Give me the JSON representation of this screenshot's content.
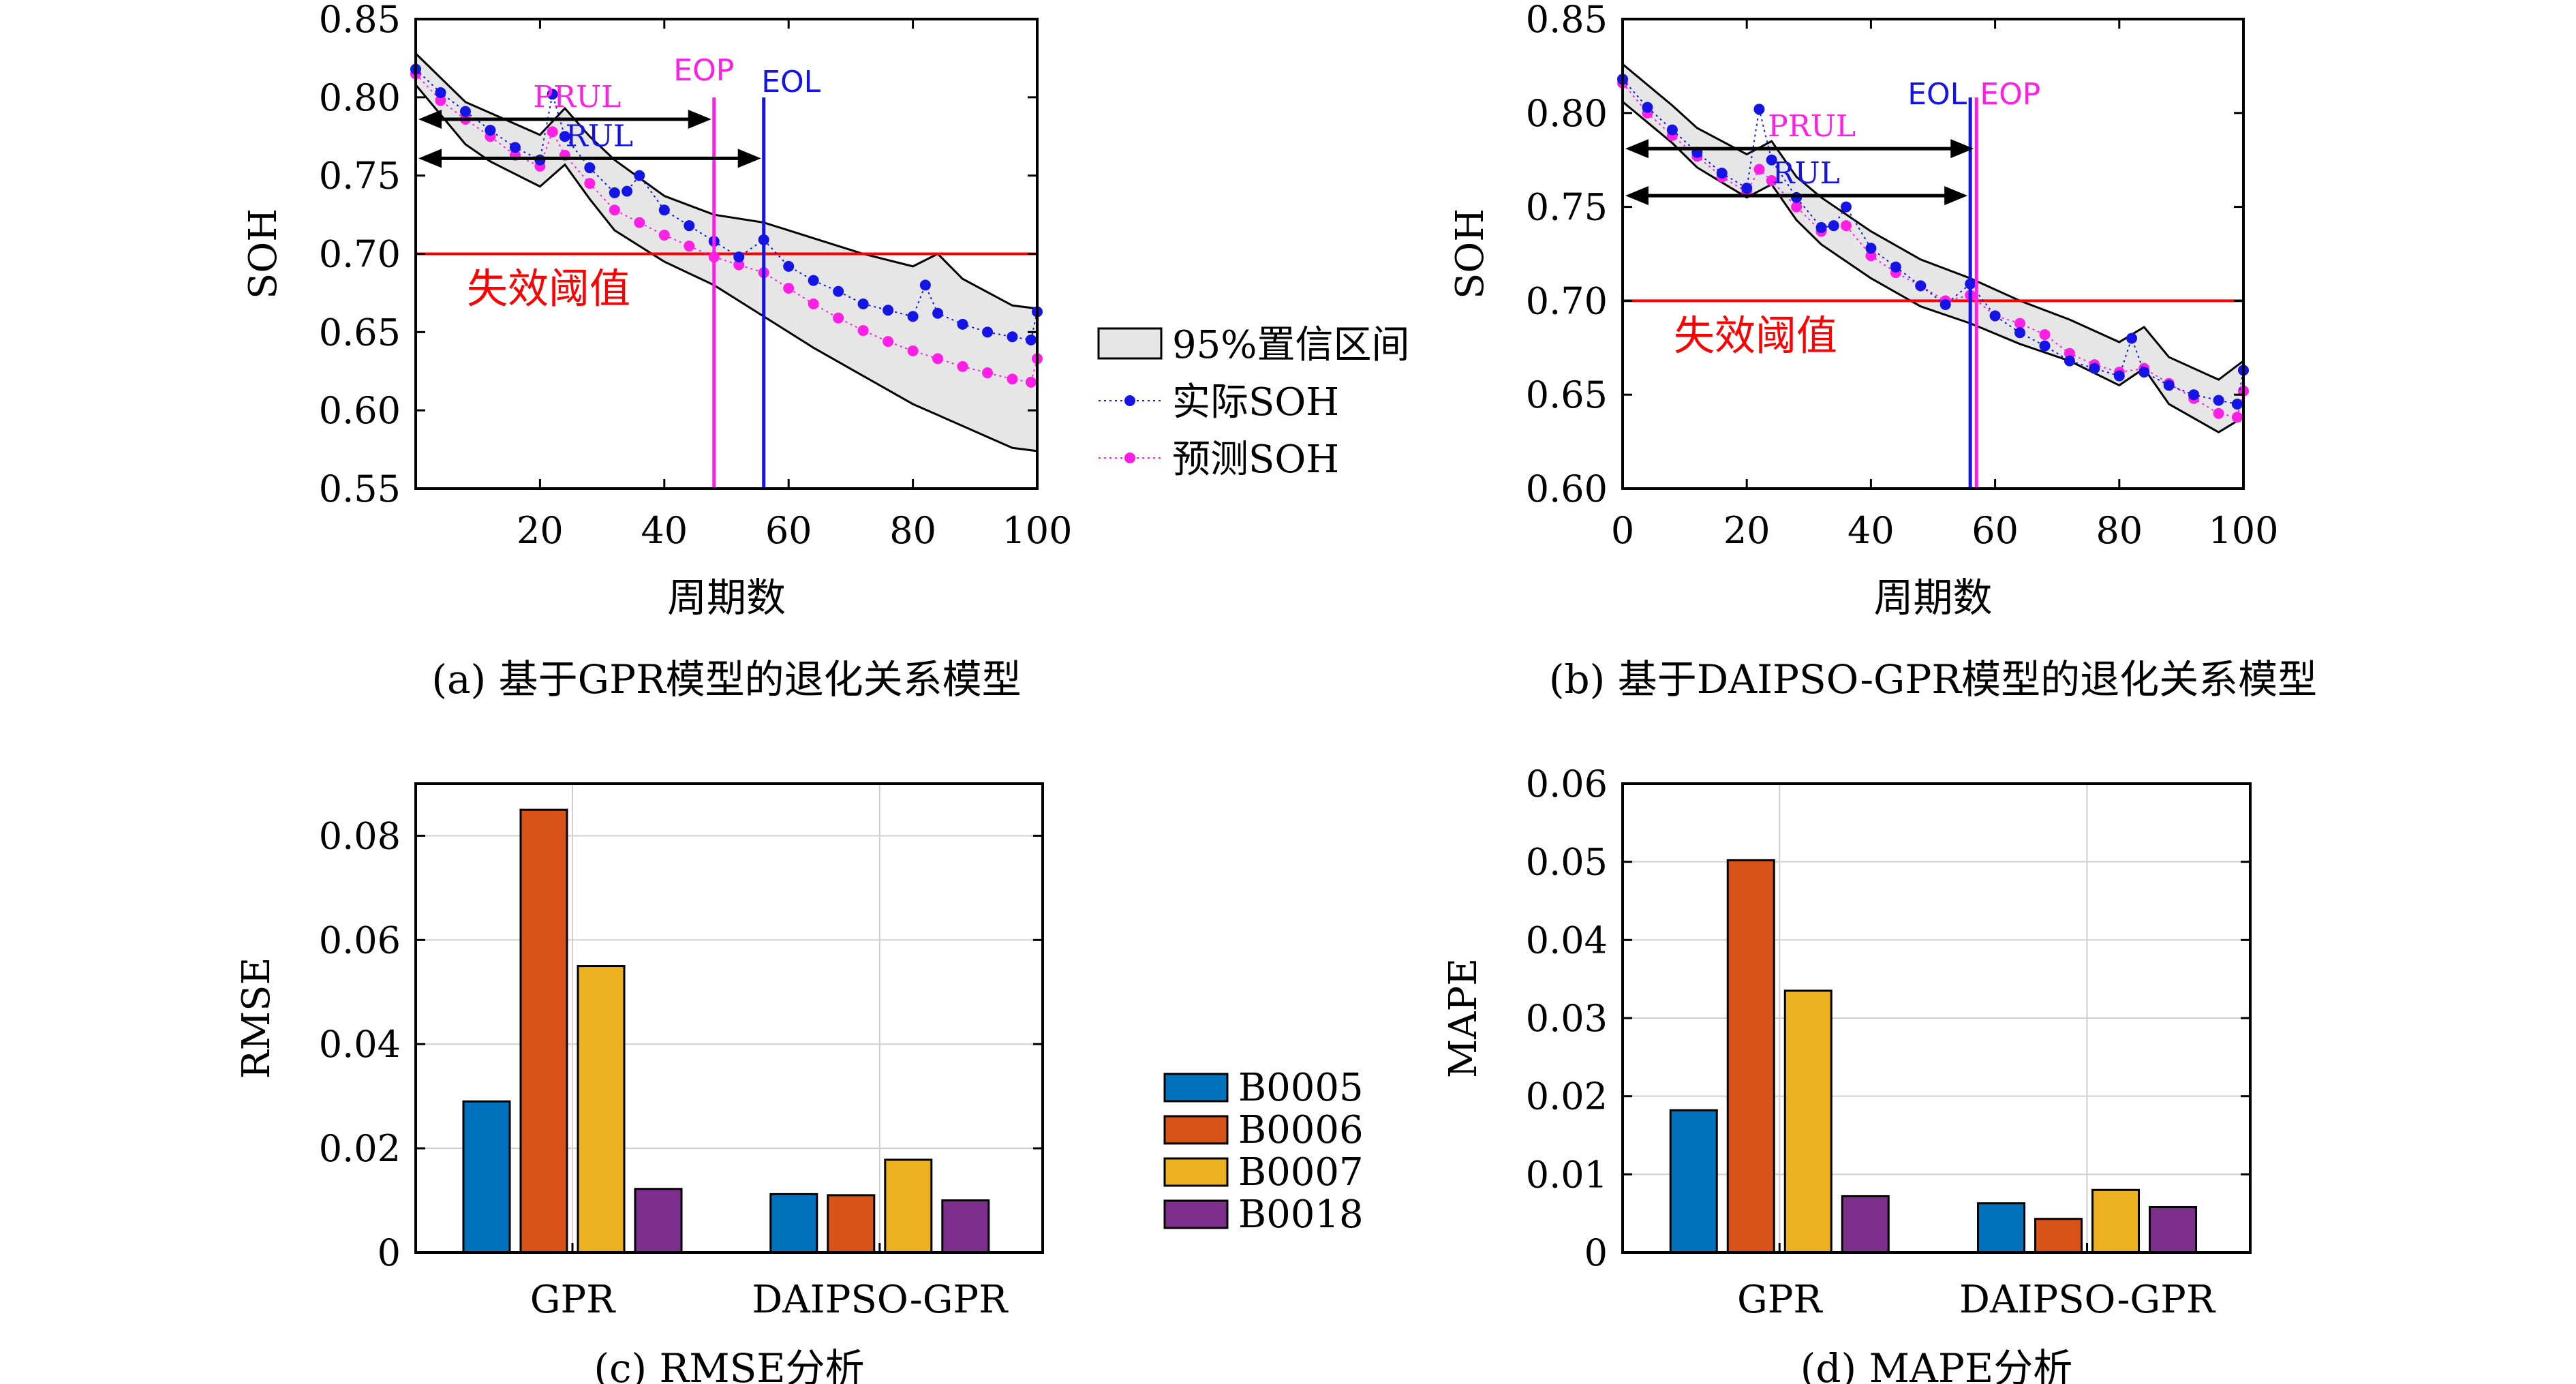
{
  "chart_data": [
    {
      "panel": "a",
      "type": "line",
      "caption": "(a) 基于GPR模型的退化关系模型",
      "xlabel": "周期数",
      "ylabel": "SOH",
      "xlim": [
        0,
        100
      ],
      "ylim": [
        0.55,
        0.85
      ],
      "xticks": [
        20,
        40,
        60,
        80,
        100
      ],
      "yticks": [
        0.55,
        0.6,
        0.65,
        0.7,
        0.75,
        0.8,
        0.85
      ],
      "threshold": {
        "value": 0.7,
        "label": "失效阈值"
      },
      "markers": {
        "EOP": 48,
        "EOL": 56
      },
      "arrows": [
        {
          "label": "PRUL",
          "from": 0,
          "to": 48,
          "y": 0.786
        },
        {
          "label": "RUL",
          "from": 0,
          "to": 56,
          "y": 0.761
        }
      ],
      "actual": {
        "name": "实际SOH",
        "x": [
          0,
          4,
          8,
          12,
          16,
          20,
          22,
          24,
          28,
          32,
          34,
          36,
          40,
          44,
          48,
          52,
          56,
          60,
          64,
          68,
          72,
          76,
          80,
          82,
          84,
          88,
          92,
          96,
          99,
          100
        ],
        "y": [
          0.818,
          0.803,
          0.791,
          0.779,
          0.768,
          0.76,
          0.802,
          0.775,
          0.755,
          0.739,
          0.74,
          0.75,
          0.728,
          0.718,
          0.708,
          0.698,
          0.709,
          0.692,
          0.683,
          0.676,
          0.668,
          0.664,
          0.66,
          0.68,
          0.662,
          0.655,
          0.65,
          0.647,
          0.645,
          0.663
        ]
      },
      "predicted": {
        "name": "预测SOH",
        "x": [
          0,
          4,
          8,
          12,
          16,
          20,
          22,
          24,
          28,
          32,
          36,
          40,
          44,
          48,
          52,
          56,
          60,
          64,
          68,
          72,
          76,
          80,
          84,
          88,
          92,
          96,
          99,
          100
        ],
        "y": [
          0.815,
          0.798,
          0.786,
          0.775,
          0.763,
          0.756,
          0.778,
          0.763,
          0.745,
          0.728,
          0.72,
          0.712,
          0.705,
          0.698,
          0.693,
          0.688,
          0.678,
          0.668,
          0.659,
          0.651,
          0.644,
          0.638,
          0.633,
          0.628,
          0.624,
          0.62,
          0.618,
          0.633
        ]
      },
      "band": {
        "name": "95%置信区间",
        "x": [
          0,
          8,
          12,
          20,
          24,
          28,
          32,
          40,
          48,
          56,
          64,
          72,
          80,
          84,
          88,
          96,
          100
        ],
        "upper": [
          0.828,
          0.797,
          0.79,
          0.776,
          0.793,
          0.775,
          0.76,
          0.737,
          0.725,
          0.72,
          0.71,
          0.7,
          0.692,
          0.7,
          0.684,
          0.667,
          0.665
        ],
        "lower": [
          0.808,
          0.77,
          0.759,
          0.743,
          0.757,
          0.735,
          0.715,
          0.695,
          0.68,
          0.66,
          0.64,
          0.622,
          0.604,
          0.597,
          0.59,
          0.576,
          0.574
        ]
      }
    },
    {
      "panel": "b",
      "type": "line",
      "caption": "(b) 基于DAIPSO-GPR模型的退化关系模型",
      "xlabel": "周期数",
      "ylabel": "SOH",
      "xlim": [
        0,
        100
      ],
      "ylim": [
        0.6,
        0.85
      ],
      "xticks": [
        0,
        20,
        40,
        60,
        80,
        100
      ],
      "yticks": [
        0.6,
        0.65,
        0.7,
        0.75,
        0.8,
        0.85
      ],
      "threshold": {
        "value": 0.7,
        "label": "失效阈值"
      },
      "markers": {
        "EOL": 56,
        "EOP": 57
      },
      "arrows": [
        {
          "label": "PRUL",
          "from": 0,
          "to": 57,
          "y": 0.781
        },
        {
          "label": "RUL",
          "from": 0,
          "to": 56,
          "y": 0.756
        }
      ],
      "actual": {
        "name": "实际SOH",
        "x": [
          0,
          4,
          8,
          12,
          16,
          20,
          22,
          24,
          28,
          32,
          34,
          36,
          40,
          44,
          48,
          52,
          56,
          60,
          64,
          68,
          72,
          76,
          80,
          82,
          84,
          88,
          92,
          96,
          99,
          100
        ],
        "y": [
          0.818,
          0.803,
          0.791,
          0.779,
          0.768,
          0.76,
          0.802,
          0.775,
          0.755,
          0.739,
          0.74,
          0.75,
          0.728,
          0.718,
          0.708,
          0.698,
          0.709,
          0.692,
          0.683,
          0.676,
          0.668,
          0.664,
          0.66,
          0.68,
          0.662,
          0.655,
          0.65,
          0.647,
          0.645,
          0.663
        ]
      },
      "predicted": {
        "name": "预测SOH",
        "x": [
          0,
          4,
          8,
          12,
          16,
          20,
          22,
          24,
          28,
          32,
          36,
          40,
          44,
          48,
          52,
          56,
          60,
          64,
          68,
          72,
          76,
          80,
          84,
          88,
          92,
          96,
          99,
          100
        ],
        "y": [
          0.816,
          0.8,
          0.788,
          0.777,
          0.766,
          0.758,
          0.77,
          0.764,
          0.75,
          0.737,
          0.74,
          0.724,
          0.715,
          0.708,
          0.7,
          0.703,
          0.692,
          0.688,
          0.682,
          0.672,
          0.666,
          0.662,
          0.664,
          0.656,
          0.648,
          0.64,
          0.638,
          0.652
        ]
      },
      "band": {
        "name": "95%置信区间",
        "x": [
          0,
          8,
          12,
          20,
          24,
          28,
          32,
          40,
          48,
          56,
          64,
          72,
          80,
          84,
          88,
          96,
          100
        ],
        "upper": [
          0.826,
          0.804,
          0.792,
          0.778,
          0.785,
          0.766,
          0.755,
          0.737,
          0.722,
          0.712,
          0.7,
          0.69,
          0.678,
          0.686,
          0.67,
          0.658,
          0.668
        ],
        "lower": [
          0.806,
          0.784,
          0.771,
          0.755,
          0.762,
          0.743,
          0.73,
          0.712,
          0.697,
          0.688,
          0.677,
          0.668,
          0.655,
          0.664,
          0.645,
          0.63,
          0.638
        ]
      }
    },
    {
      "panel": "c",
      "type": "bar",
      "caption": "(c) RMSE分析",
      "ylabel": "RMSE",
      "categories": [
        "GPR",
        "DAIPSO-GPR"
      ],
      "ylim": [
        0,
        0.09
      ],
      "yticks": [
        0,
        0.02,
        0.04,
        0.06,
        0.08
      ],
      "ytick_labels": [
        "0",
        "0.02",
        "0.04",
        "0.06",
        "0.08"
      ],
      "series": [
        {
          "name": "B0005",
          "values": [
            0.029,
            0.0112
          ]
        },
        {
          "name": "B0006",
          "values": [
            0.085,
            0.011
          ]
        },
        {
          "name": "B0007",
          "values": [
            0.055,
            0.0178
          ]
        },
        {
          "name": "B0018",
          "values": [
            0.0122,
            0.01
          ]
        }
      ]
    },
    {
      "panel": "d",
      "type": "bar",
      "caption": "(d) MAPE分析",
      "ylabel": "MAPE",
      "categories": [
        "GPR",
        "DAIPSO-GPR"
      ],
      "ylim": [
        0,
        0.06
      ],
      "yticks": [
        0,
        0.01,
        0.02,
        0.03,
        0.04,
        0.05,
        0.06
      ],
      "ytick_labels": [
        "0",
        "0.01",
        "0.02",
        "0.03",
        "0.04",
        "0.05",
        "0.06"
      ],
      "series": [
        {
          "name": "B0005",
          "values": [
            0.0182,
            0.0063
          ]
        },
        {
          "name": "B0006",
          "values": [
            0.0502,
            0.0043
          ]
        },
        {
          "name": "B0007",
          "values": [
            0.0335,
            0.008
          ]
        },
        {
          "name": "B0018",
          "values": [
            0.0072,
            0.0058
          ]
        }
      ]
    }
  ],
  "legend_top": [
    {
      "label": "95%置信区间",
      "kind": "band"
    },
    {
      "label": "实际SOH",
      "kind": "actual"
    },
    {
      "label": "预测SOH",
      "kind": "predicted"
    }
  ],
  "legend_bottom": [
    "B0005",
    "B0006",
    "B0007",
    "B0018"
  ],
  "colors": {
    "actual": "#1414e6",
    "predicted": "#ff1ee6",
    "threshold": "#ff0000",
    "eop": "#ff1ee6",
    "eol": "#1414e6",
    "band_fill": "#e6e6e6",
    "grid": "#d0d0d0",
    "bars": [
      "#0072bd",
      "#d95319",
      "#edb120",
      "#7e2f8e"
    ]
  }
}
